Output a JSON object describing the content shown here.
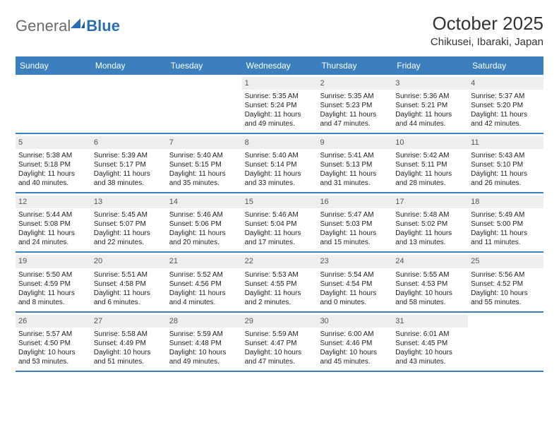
{
  "brand": {
    "part1": "General",
    "part2": "Blue"
  },
  "title": "October 2025",
  "location": "Chikusei, Ibaraki, Japan",
  "colors": {
    "accent": "#3b7fbf",
    "daynum_bg": "#eceef0",
    "text": "#333333",
    "logo_gray": "#6b6b6b",
    "logo_blue": "#2a6fb5"
  },
  "day_headers": [
    "Sunday",
    "Monday",
    "Tuesday",
    "Wednesday",
    "Thursday",
    "Friday",
    "Saturday"
  ],
  "weeks": [
    [
      {
        "n": "",
        "sr": "",
        "ss": "",
        "dl": ""
      },
      {
        "n": "",
        "sr": "",
        "ss": "",
        "dl": ""
      },
      {
        "n": "",
        "sr": "",
        "ss": "",
        "dl": ""
      },
      {
        "n": "1",
        "sr": "Sunrise: 5:35 AM",
        "ss": "Sunset: 5:24 PM",
        "dl": "Daylight: 11 hours and 49 minutes."
      },
      {
        "n": "2",
        "sr": "Sunrise: 5:35 AM",
        "ss": "Sunset: 5:23 PM",
        "dl": "Daylight: 11 hours and 47 minutes."
      },
      {
        "n": "3",
        "sr": "Sunrise: 5:36 AM",
        "ss": "Sunset: 5:21 PM",
        "dl": "Daylight: 11 hours and 44 minutes."
      },
      {
        "n": "4",
        "sr": "Sunrise: 5:37 AM",
        "ss": "Sunset: 5:20 PM",
        "dl": "Daylight: 11 hours and 42 minutes."
      }
    ],
    [
      {
        "n": "5",
        "sr": "Sunrise: 5:38 AM",
        "ss": "Sunset: 5:18 PM",
        "dl": "Daylight: 11 hours and 40 minutes."
      },
      {
        "n": "6",
        "sr": "Sunrise: 5:39 AM",
        "ss": "Sunset: 5:17 PM",
        "dl": "Daylight: 11 hours and 38 minutes."
      },
      {
        "n": "7",
        "sr": "Sunrise: 5:40 AM",
        "ss": "Sunset: 5:15 PM",
        "dl": "Daylight: 11 hours and 35 minutes."
      },
      {
        "n": "8",
        "sr": "Sunrise: 5:40 AM",
        "ss": "Sunset: 5:14 PM",
        "dl": "Daylight: 11 hours and 33 minutes."
      },
      {
        "n": "9",
        "sr": "Sunrise: 5:41 AM",
        "ss": "Sunset: 5:13 PM",
        "dl": "Daylight: 11 hours and 31 minutes."
      },
      {
        "n": "10",
        "sr": "Sunrise: 5:42 AM",
        "ss": "Sunset: 5:11 PM",
        "dl": "Daylight: 11 hours and 28 minutes."
      },
      {
        "n": "11",
        "sr": "Sunrise: 5:43 AM",
        "ss": "Sunset: 5:10 PM",
        "dl": "Daylight: 11 hours and 26 minutes."
      }
    ],
    [
      {
        "n": "12",
        "sr": "Sunrise: 5:44 AM",
        "ss": "Sunset: 5:08 PM",
        "dl": "Daylight: 11 hours and 24 minutes."
      },
      {
        "n": "13",
        "sr": "Sunrise: 5:45 AM",
        "ss": "Sunset: 5:07 PM",
        "dl": "Daylight: 11 hours and 22 minutes."
      },
      {
        "n": "14",
        "sr": "Sunrise: 5:46 AM",
        "ss": "Sunset: 5:06 PM",
        "dl": "Daylight: 11 hours and 20 minutes."
      },
      {
        "n": "15",
        "sr": "Sunrise: 5:46 AM",
        "ss": "Sunset: 5:04 PM",
        "dl": "Daylight: 11 hours and 17 minutes."
      },
      {
        "n": "16",
        "sr": "Sunrise: 5:47 AM",
        "ss": "Sunset: 5:03 PM",
        "dl": "Daylight: 11 hours and 15 minutes."
      },
      {
        "n": "17",
        "sr": "Sunrise: 5:48 AM",
        "ss": "Sunset: 5:02 PM",
        "dl": "Daylight: 11 hours and 13 minutes."
      },
      {
        "n": "18",
        "sr": "Sunrise: 5:49 AM",
        "ss": "Sunset: 5:00 PM",
        "dl": "Daylight: 11 hours and 11 minutes."
      }
    ],
    [
      {
        "n": "19",
        "sr": "Sunrise: 5:50 AM",
        "ss": "Sunset: 4:59 PM",
        "dl": "Daylight: 11 hours and 8 minutes."
      },
      {
        "n": "20",
        "sr": "Sunrise: 5:51 AM",
        "ss": "Sunset: 4:58 PM",
        "dl": "Daylight: 11 hours and 6 minutes."
      },
      {
        "n": "21",
        "sr": "Sunrise: 5:52 AM",
        "ss": "Sunset: 4:56 PM",
        "dl": "Daylight: 11 hours and 4 minutes."
      },
      {
        "n": "22",
        "sr": "Sunrise: 5:53 AM",
        "ss": "Sunset: 4:55 PM",
        "dl": "Daylight: 11 hours and 2 minutes."
      },
      {
        "n": "23",
        "sr": "Sunrise: 5:54 AM",
        "ss": "Sunset: 4:54 PM",
        "dl": "Daylight: 11 hours and 0 minutes."
      },
      {
        "n": "24",
        "sr": "Sunrise: 5:55 AM",
        "ss": "Sunset: 4:53 PM",
        "dl": "Daylight: 10 hours and 58 minutes."
      },
      {
        "n": "25",
        "sr": "Sunrise: 5:56 AM",
        "ss": "Sunset: 4:52 PM",
        "dl": "Daylight: 10 hours and 55 minutes."
      }
    ],
    [
      {
        "n": "26",
        "sr": "Sunrise: 5:57 AM",
        "ss": "Sunset: 4:50 PM",
        "dl": "Daylight: 10 hours and 53 minutes."
      },
      {
        "n": "27",
        "sr": "Sunrise: 5:58 AM",
        "ss": "Sunset: 4:49 PM",
        "dl": "Daylight: 10 hours and 51 minutes."
      },
      {
        "n": "28",
        "sr": "Sunrise: 5:59 AM",
        "ss": "Sunset: 4:48 PM",
        "dl": "Daylight: 10 hours and 49 minutes."
      },
      {
        "n": "29",
        "sr": "Sunrise: 5:59 AM",
        "ss": "Sunset: 4:47 PM",
        "dl": "Daylight: 10 hours and 47 minutes."
      },
      {
        "n": "30",
        "sr": "Sunrise: 6:00 AM",
        "ss": "Sunset: 4:46 PM",
        "dl": "Daylight: 10 hours and 45 minutes."
      },
      {
        "n": "31",
        "sr": "Sunrise: 6:01 AM",
        "ss": "Sunset: 4:45 PM",
        "dl": "Daylight: 10 hours and 43 minutes."
      },
      {
        "n": "",
        "sr": "",
        "ss": "",
        "dl": ""
      }
    ]
  ]
}
